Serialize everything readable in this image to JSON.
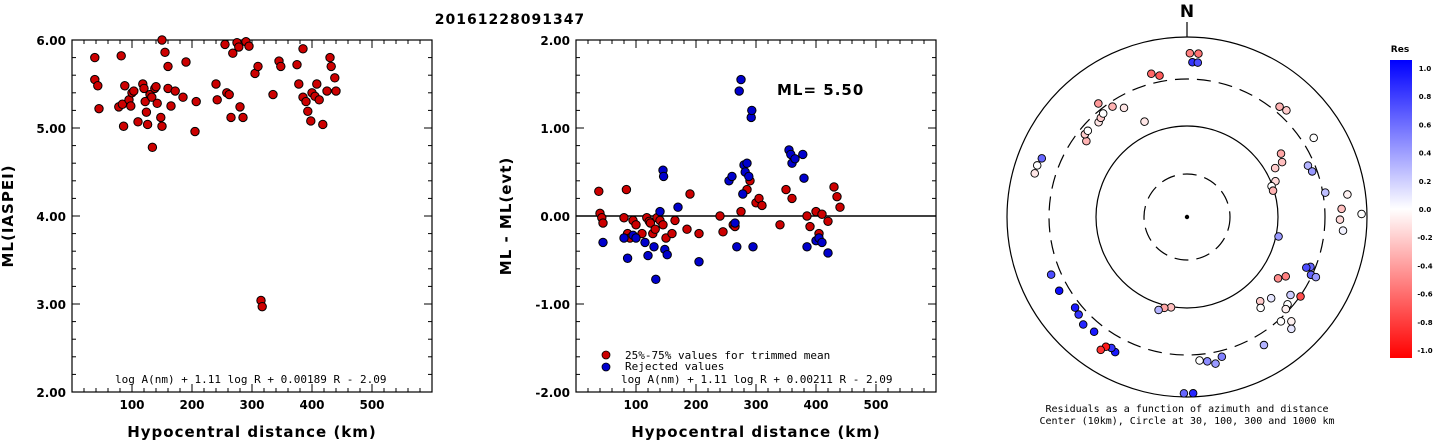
{
  "title": "20161228091347",
  "chart_data": [
    {
      "type": "scatter",
      "name": "left-panel",
      "xlabel": "Hypocentral distance (km)",
      "ylabel": "ML(IASPEI)",
      "xlim": [
        0,
        600
      ],
      "ylim": [
        2.0,
        6.0
      ],
      "xticks": [
        "100",
        "200",
        "300",
        "400",
        "500"
      ],
      "yticks": [
        "2.00",
        "3.00",
        "4.00",
        "5.00",
        "6.00"
      ],
      "formula": "log A(nm) + 1.11 log R + 0.00189 R - 2.09",
      "points_color": "#cc0000",
      "points": [
        [
          38,
          5.8
        ],
        [
          38,
          5.55
        ],
        [
          43,
          5.48
        ],
        [
          45,
          5.22
        ],
        [
          78,
          5.24
        ],
        [
          82,
          5.82
        ],
        [
          84,
          5.27
        ],
        [
          86,
          5.02
        ],
        [
          88,
          5.48
        ],
        [
          95,
          5.32
        ],
        [
          98,
          5.25
        ],
        [
          100,
          5.4
        ],
        [
          103,
          5.42
        ],
        [
          110,
          5.07
        ],
        [
          118,
          5.5
        ],
        [
          120,
          5.45
        ],
        [
          122,
          5.3
        ],
        [
          124,
          5.18
        ],
        [
          126,
          5.04
        ],
        [
          130,
          5.38
        ],
        [
          133,
          5.35
        ],
        [
          134,
          4.78
        ],
        [
          138,
          5.45
        ],
        [
          140,
          5.47
        ],
        [
          142,
          5.28
        ],
        [
          148,
          5.12
        ],
        [
          150,
          5.02
        ],
        [
          150,
          6.0
        ],
        [
          155,
          5.86
        ],
        [
          160,
          5.7
        ],
        [
          160,
          5.45
        ],
        [
          165,
          5.25
        ],
        [
          172,
          5.42
        ],
        [
          185,
          5.35
        ],
        [
          190,
          5.75
        ],
        [
          205,
          4.96
        ],
        [
          207,
          5.3
        ],
        [
          240,
          5.5
        ],
        [
          242,
          5.32
        ],
        [
          255,
          5.95
        ],
        [
          258,
          5.4
        ],
        [
          262,
          5.38
        ],
        [
          265,
          5.12
        ],
        [
          268,
          5.85
        ],
        [
          275,
          5.97
        ],
        [
          278,
          5.92
        ],
        [
          280,
          5.24
        ],
        [
          285,
          5.12
        ],
        [
          290,
          5.98
        ],
        [
          295,
          5.93
        ],
        [
          305,
          5.62
        ],
        [
          310,
          5.7
        ],
        [
          315,
          3.04
        ],
        [
          317,
          2.97
        ],
        [
          335,
          5.38
        ],
        [
          345,
          5.76
        ],
        [
          348,
          5.7
        ],
        [
          375,
          5.72
        ],
        [
          378,
          5.5
        ],
        [
          385,
          5.35
        ],
        [
          385,
          5.9
        ],
        [
          390,
          5.3
        ],
        [
          393,
          5.19
        ],
        [
          398,
          5.08
        ],
        [
          400,
          5.4
        ],
        [
          405,
          5.36
        ],
        [
          408,
          5.5
        ],
        [
          412,
          5.32
        ],
        [
          418,
          5.04
        ],
        [
          425,
          5.42
        ],
        [
          430,
          5.8
        ],
        [
          432,
          5.7
        ],
        [
          438,
          5.57
        ],
        [
          440,
          5.42
        ]
      ]
    },
    {
      "type": "scatter",
      "name": "middle-panel",
      "xlabel": "Hypocentral distance (km)",
      "ylabel": "ML - ML(evt)",
      "xlim": [
        0,
        600
      ],
      "ylim": [
        -2.0,
        2.0
      ],
      "xticks": [
        "100",
        "200",
        "300",
        "400",
        "500"
      ],
      "yticks": [
        "-2.00",
        "-1.00",
        "0.00",
        "1.00",
        "2.00"
      ],
      "annotation": "ML= 5.50",
      "formula": "log A(nm) + 1.11 log R + 0.00211 R - 2.09",
      "legend": [
        {
          "label": "25%-75% values for trimmed mean",
          "color": "#cc0000"
        },
        {
          "label": "Rejected values",
          "color": "#0000cc"
        }
      ],
      "series": [
        {
          "name": "25%-75% values for trimmed mean",
          "color": "#cc0000",
          "points": [
            [
              38,
              0.28
            ],
            [
              40,
              0.03
            ],
            [
              43,
              -0.02
            ],
            [
              45,
              -0.08
            ],
            [
              80,
              -0.02
            ],
            [
              84,
              0.3
            ],
            [
              86,
              -0.2
            ],
            [
              90,
              -0.25
            ],
            [
              95,
              -0.05
            ],
            [
              100,
              -0.1
            ],
            [
              110,
              -0.2
            ],
            [
              118,
              -0.02
            ],
            [
              122,
              -0.06
            ],
            [
              124,
              -0.08
            ],
            [
              128,
              -0.2
            ],
            [
              132,
              -0.15
            ],
            [
              135,
              -0.02
            ],
            [
              140,
              -0.05
            ],
            [
              145,
              -0.1
            ],
            [
              150,
              -0.25
            ],
            [
              160,
              -0.2
            ],
            [
              165,
              -0.05
            ],
            [
              185,
              -0.15
            ],
            [
              190,
              0.25
            ],
            [
              205,
              -0.2
            ],
            [
              240,
              0.0
            ],
            [
              245,
              -0.18
            ],
            [
              262,
              -0.1
            ],
            [
              265,
              -0.12
            ],
            [
              275,
              0.05
            ],
            [
              285,
              0.3
            ],
            [
              290,
              0.4
            ],
            [
              300,
              0.15
            ],
            [
              305,
              0.2
            ],
            [
              310,
              0.12
            ],
            [
              340,
              -0.1
            ],
            [
              350,
              0.3
            ],
            [
              360,
              0.2
            ],
            [
              385,
              0.0
            ],
            [
              390,
              -0.12
            ],
            [
              400,
              0.05
            ],
            [
              405,
              -0.2
            ],
            [
              410,
              0.02
            ],
            [
              420,
              -0.06
            ],
            [
              430,
              0.33
            ],
            [
              435,
              0.22
            ],
            [
              440,
              0.1
            ]
          ]
        },
        {
          "name": "Rejected values",
          "color": "#0000cc",
          "points": [
            [
              45,
              -0.3
            ],
            [
              80,
              -0.25
            ],
            [
              86,
              -0.48
            ],
            [
              95,
              -0.22
            ],
            [
              100,
              -0.25
            ],
            [
              115,
              -0.3
            ],
            [
              120,
              -0.45
            ],
            [
              130,
              -0.35
            ],
            [
              133,
              -0.72
            ],
            [
              140,
              0.05
            ],
            [
              145,
              0.52
            ],
            [
              146,
              0.45
            ],
            [
              148,
              -0.38
            ],
            [
              152,
              -0.44
            ],
            [
              170,
              0.1
            ],
            [
              205,
              -0.52
            ],
            [
              255,
              0.4
            ],
            [
              260,
              0.45
            ],
            [
              265,
              -0.08
            ],
            [
              268,
              -0.35
            ],
            [
              272,
              1.42
            ],
            [
              275,
              1.55
            ],
            [
              278,
              0.25
            ],
            [
              280,
              0.58
            ],
            [
              282,
              0.5
            ],
            [
              285,
              0.6
            ],
            [
              288,
              0.45
            ],
            [
              292,
              1.12
            ],
            [
              293,
              1.2
            ],
            [
              295,
              -0.35
            ],
            [
              355,
              0.75
            ],
            [
              358,
              0.7
            ],
            [
              360,
              0.6
            ],
            [
              365,
              0.65
            ],
            [
              378,
              0.7
            ],
            [
              380,
              0.43
            ],
            [
              385,
              -0.35
            ],
            [
              400,
              -0.28
            ],
            [
              405,
              -0.25
            ],
            [
              410,
              -0.3
            ],
            [
              420,
              -0.42
            ]
          ]
        }
      ]
    },
    {
      "type": "polar-scatter",
      "name": "residual-map",
      "north_label": "N",
      "rings": [
        "30",
        "100",
        "300",
        "1000"
      ],
      "caption_line1": "Residuals as a function of azimuth and distance",
      "caption_line2": "Center (10km), Circle at 30, 100, 300 and 1000 km",
      "colorbar_title": "Res",
      "colorbar_ticks": [
        "1.0",
        "0.8",
        "0.6",
        "0.4",
        "0.2",
        "0.0",
        "-0.2",
        "-0.4",
        "-0.6",
        "-0.8",
        "-1.0"
      ],
      "points": [
        {
          "az": 4,
          "r": 0.91,
          "res": -0.55
        },
        {
          "az": 1,
          "r": 0.91,
          "res": -0.5
        },
        {
          "az": 2,
          "r": 0.86,
          "res": 0.8
        },
        {
          "az": 4,
          "r": 0.86,
          "res": 0.7
        },
        {
          "az": 40,
          "r": 0.8,
          "res": -0.3
        },
        {
          "az": 43,
          "r": 0.81,
          "res": -0.2
        },
        {
          "az": 58,
          "r": 0.83,
          "res": 0.0
        },
        {
          "az": 56,
          "r": 0.63,
          "res": -0.35
        },
        {
          "az": 60,
          "r": 0.61,
          "res": -0.25
        },
        {
          "az": 61,
          "r": 0.56,
          "res": -0.2
        },
        {
          "az": 68,
          "r": 0.53,
          "res": -0.15
        },
        {
          "az": 70,
          "r": 0.5,
          "res": 0.0
        },
        {
          "az": 73,
          "r": 0.5,
          "res": -0.3
        },
        {
          "az": 67,
          "r": 0.73,
          "res": 0.3
        },
        {
          "az": 70,
          "r": 0.74,
          "res": 0.4
        },
        {
          "az": 82,
          "r": 0.9,
          "res": -0.05
        },
        {
          "az": 87,
          "r": 0.86,
          "res": -0.25
        },
        {
          "az": 91,
          "r": 0.85,
          "res": -0.15
        },
        {
          "az": 89,
          "r": 0.97,
          "res": 0.0
        },
        {
          "az": 95,
          "r": 0.87,
          "res": 0.05
        },
        {
          "az": 80,
          "r": 0.78,
          "res": 0.25
        },
        {
          "az": 102,
          "r": 0.52,
          "res": 0.4
        },
        {
          "az": 112,
          "r": 0.74,
          "res": 0.6
        },
        {
          "az": 113,
          "r": 0.72,
          "res": 0.7
        },
        {
          "az": 115,
          "r": 0.76,
          "res": 0.6
        },
        {
          "az": 115,
          "r": 0.79,
          "res": 0.4
        },
        {
          "az": 121,
          "r": 0.64,
          "res": -0.5
        },
        {
          "az": 124,
          "r": 0.61,
          "res": -0.45
        },
        {
          "az": 125,
          "r": 0.77,
          "res": -0.7
        },
        {
          "az": 127,
          "r": 0.72,
          "res": 0.2
        },
        {
          "az": 131,
          "r": 0.74,
          "res": 0.0
        },
        {
          "az": 133,
          "r": 0.75,
          "res": -0.05
        },
        {
          "az": 135,
          "r": 0.82,
          "res": -0.05
        },
        {
          "az": 137,
          "r": 0.85,
          "res": 0.1
        },
        {
          "az": 134,
          "r": 0.65,
          "res": 0.1
        },
        {
          "az": 138,
          "r": 0.78,
          "res": 0.0
        },
        {
          "az": 139,
          "r": 0.62,
          "res": -0.2
        },
        {
          "az": 141,
          "r": 0.65,
          "res": 0.0
        },
        {
          "az": 149,
          "r": 0.83,
          "res": 0.3
        },
        {
          "az": 166,
          "r": 0.8,
          "res": 0.5
        },
        {
          "az": 169,
          "r": 0.83,
          "res": 0.4
        },
        {
          "az": 172,
          "r": 0.81,
          "res": 0.45
        },
        {
          "az": 175,
          "r": 0.8,
          "res": 0.0
        },
        {
          "az": 178,
          "r": 0.98,
          "res": 0.85
        },
        {
          "az": 181,
          "r": 0.98,
          "res": 0.6
        },
        {
          "az": 190,
          "r": 0.51,
          "res": -0.25
        },
        {
          "az": 194,
          "r": 0.52,
          "res": -0.35
        },
        {
          "az": 197,
          "r": 0.54,
          "res": 0.3
        },
        {
          "az": 208,
          "r": 0.85,
          "res": 0.9
        },
        {
          "az": 210,
          "r": 0.84,
          "res": 0.8
        },
        {
          "az": 212,
          "r": 0.85,
          "res": -0.9
        },
        {
          "az": 213,
          "r": 0.88,
          "res": -0.8
        },
        {
          "az": 219,
          "r": 0.82,
          "res": 0.9
        },
        {
          "az": 224,
          "r": 0.83,
          "res": 0.85
        },
        {
          "az": 228,
          "r": 0.81,
          "res": 0.8
        },
        {
          "az": 231,
          "r": 0.8,
          "res": 0.9
        },
        {
          "az": 240,
          "r": 0.82,
          "res": 0.95
        },
        {
          "az": 247,
          "r": 0.82,
          "res": 0.7
        },
        {
          "az": 286,
          "r": 0.88,
          "res": -0.1
        },
        {
          "az": 289,
          "r": 0.88,
          "res": 0.0
        },
        {
          "az": 292,
          "r": 0.87,
          "res": 0.6
        },
        {
          "az": 307,
          "r": 0.7,
          "res": -0.3
        },
        {
          "az": 309,
          "r": 0.73,
          "res": -0.2
        },
        {
          "az": 311,
          "r": 0.73,
          "res": 0.0
        },
        {
          "az": 317,
          "r": 0.72,
          "res": -0.1
        },
        {
          "az": 319,
          "r": 0.73,
          "res": -0.2
        },
        {
          "az": 321,
          "r": 0.74,
          "res": 0.0
        },
        {
          "az": 322,
          "r": 0.8,
          "res": -0.4
        },
        {
          "az": 326,
          "r": 0.74,
          "res": -0.3
        },
        {
          "az": 330,
          "r": 0.7,
          "res": -0.1
        },
        {
          "az": 336,
          "r": 0.58,
          "res": -0.1
        },
        {
          "az": 346,
          "r": 0.82,
          "res": -0.6
        },
        {
          "az": 349,
          "r": 0.8,
          "res": -0.65
        }
      ]
    }
  ]
}
